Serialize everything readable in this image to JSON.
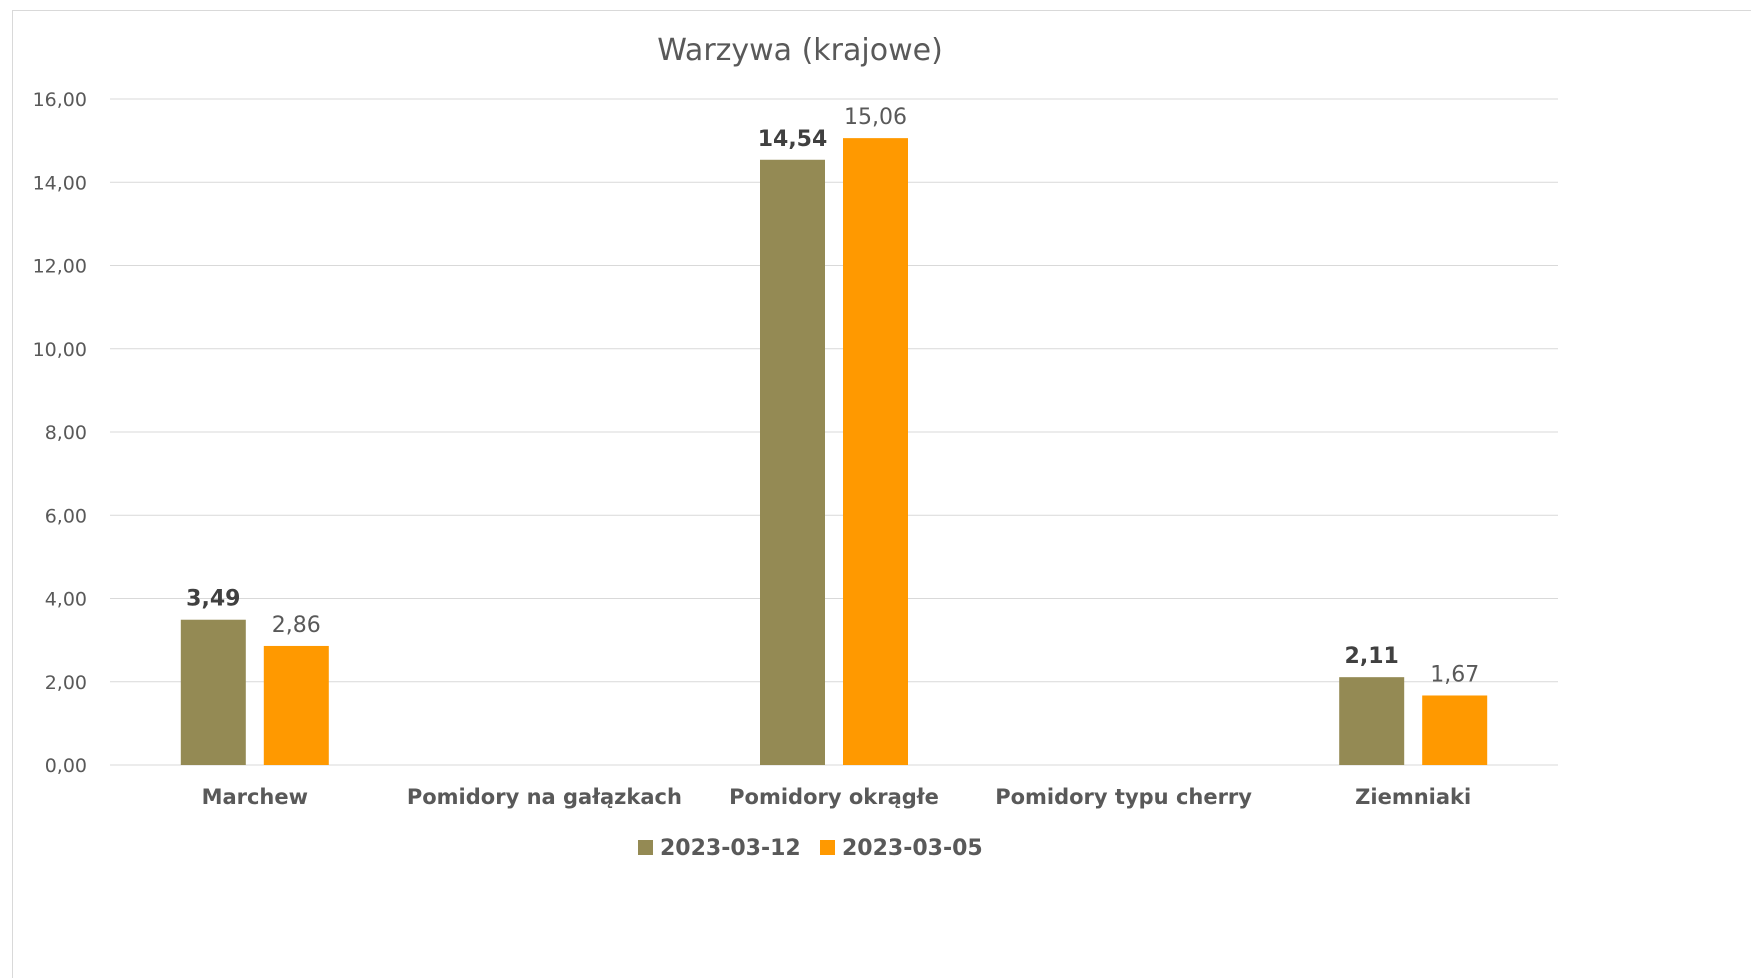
{
  "chart_data": {
    "type": "bar",
    "title": "Warzywa (krajowe)",
    "xlabel": "",
    "ylabel": "",
    "categories": [
      "Marchew",
      "Pomidory na gałązkach",
      "Pomidory okrągłe",
      "Pomidory typu cherry",
      "Ziemniaki"
    ],
    "series": [
      {
        "name": "2023-03-12",
        "color": "#948a54",
        "values": [
          3.49,
          null,
          14.54,
          null,
          2.11
        ],
        "labels": [
          "3,49",
          "",
          "14,54",
          "",
          "2,11"
        ]
      },
      {
        "name": "2023-03-05",
        "color": "#ff9900",
        "values": [
          2.86,
          null,
          15.06,
          null,
          1.67
        ],
        "labels": [
          "2,86",
          "",
          "15,06",
          "",
          "1,67"
        ]
      }
    ],
    "ylim": [
      0,
      16
    ],
    "yticks": [
      "0,00",
      "2,00",
      "4,00",
      "6,00",
      "8,00",
      "10,00",
      "12,00",
      "14,00",
      "16,00"
    ],
    "grid": true,
    "legend": "bottom"
  }
}
